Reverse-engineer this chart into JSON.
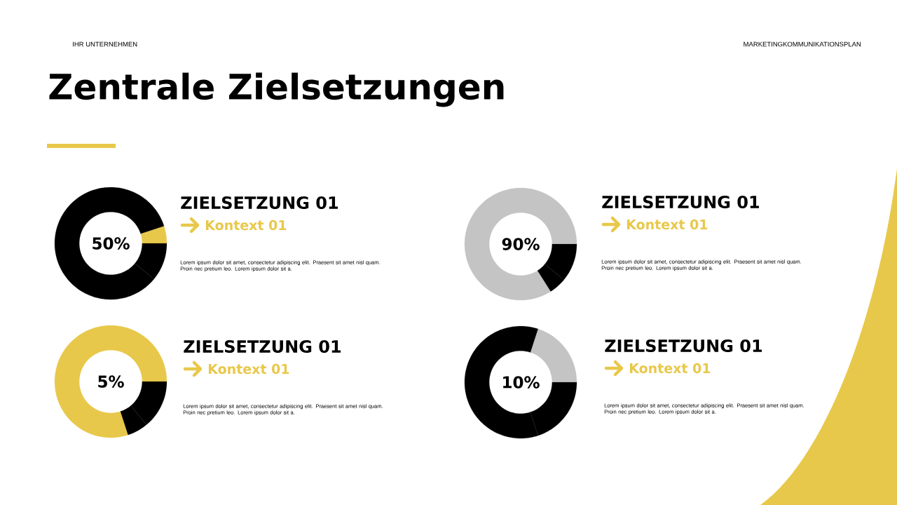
{
  "chart_data": [
    {
      "type": "donut",
      "title": "ZIELSETZUNG 01",
      "subtitle": "Kontext 01",
      "categories": [
        null,
        null,
        null
      ],
      "values": [
        5,
        84,
        11
      ],
      "colors": [
        "#e8c84a",
        "#000000",
        "#000000"
      ],
      "annotations": [
        "50%",
        "Lorem ipsum dolor sit amet, consectetur adipiscing elit. Praesent sit amet nisl quam. Proin nec pretium leo. Lorem ipsum dolor sit a.",
        "Zentrale Zielsetzungen",
        "IHR UNTERNEHMEN",
        "MARKETINGKOMMUNIKATIONSPLAN"
      ]
    },
    {
      "type": "donut",
      "title": "ZIELSETZUNG 01",
      "subtitle": "Kontext 01",
      "categories": [
        null,
        null,
        null
      ],
      "values": [
        84,
        5,
        11
      ],
      "colors": [
        "#c4c4c4",
        "#000000",
        "#000000"
      ],
      "annotations": [
        "90%",
        "Lorem ipsum dolor sit amet, consectetur adipiscing elit. Praesent sit amet nisl quam. Proin nec pretium leo. Lorem ipsum dolor sit a."
      ]
    },
    {
      "type": "donut",
      "title": "ZIELSETZUNG 01",
      "subtitle": "Kontext 01",
      "categories": [
        null,
        null,
        null
      ],
      "values": [
        80,
        6,
        14
      ],
      "colors": [
        "#e8c84a",
        "#000000",
        "#000000"
      ],
      "annotations": [
        "5%",
        "Lorem ipsum dolor sit amet, consectetur adipiscing elit. Praesent sit amet nisl quam. Proin nec pretium leo. Lorem ipsum dolor sit a."
      ]
    },
    {
      "type": "donut",
      "title": "ZIELSETZUNG 01",
      "subtitle": "Kontext 01",
      "categories": [
        null,
        null,
        null
      ],
      "values": [
        20,
        60,
        20
      ],
      "colors": [
        "#c4c4c4",
        "#000000",
        "#000000"
      ],
      "annotations": [
        "10%",
        "Lorem ipsum dolor sit amet, consectetur adipiscing elit. Praesent sit amet nisl quam. Proin nec pretium leo. Lorem ipsum dolor sit a."
      ]
    }
  ]
}
